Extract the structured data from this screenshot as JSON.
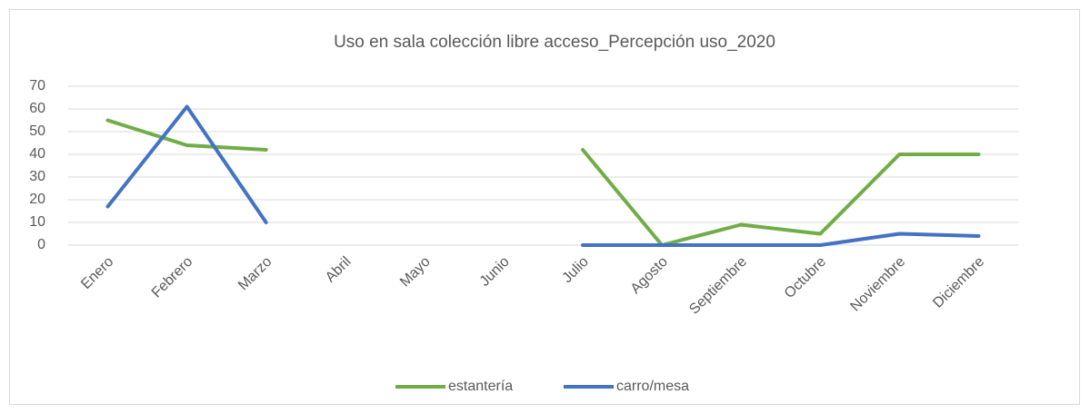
{
  "chart_data": {
    "type": "line",
    "title": "Uso en sala colección libre acceso_Percepción uso_2020",
    "categories": [
      "Enero",
      "Febrero",
      "Marzo",
      "Abril",
      "Mayo",
      "Junio",
      "Julio",
      "Agosto",
      "Septiembre",
      "Octubre",
      "Noviembre",
      "Diciembre"
    ],
    "series": [
      {
        "name": "estantería",
        "color": "#70ad47",
        "values": [
          55,
          44,
          42,
          null,
          null,
          null,
          42,
          0,
          9,
          5,
          40,
          40
        ]
      },
      {
        "name": "carro/mesa",
        "color": "#4472c4",
        "values": [
          17,
          61,
          10,
          null,
          null,
          null,
          0,
          0,
          0,
          0,
          5,
          4
        ]
      }
    ],
    "ylim": [
      0,
      70
    ],
    "yticks": [
      0,
      10,
      20,
      30,
      40,
      50,
      60,
      70
    ],
    "grid": true,
    "legend": "bottom"
  }
}
